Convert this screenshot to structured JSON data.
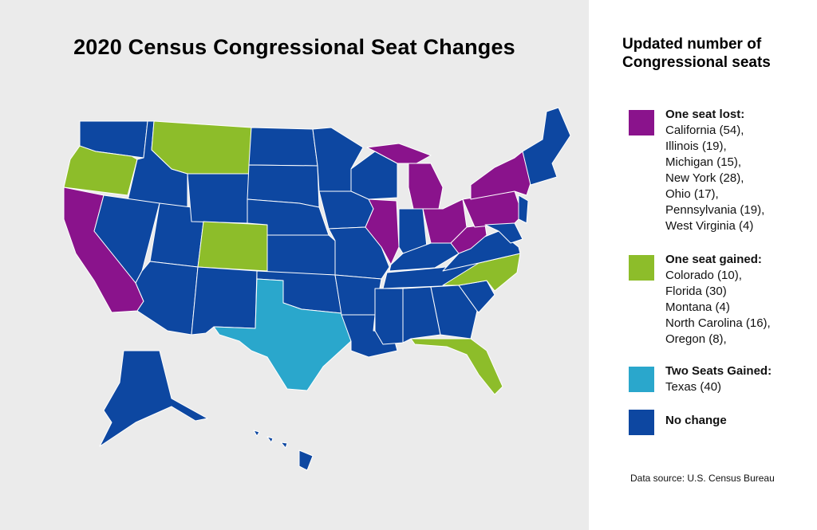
{
  "title": "2020 Census Congressional Seat Changes",
  "legend": {
    "title_line1": "Updated number of",
    "title_line2": "Congressional seats",
    "groups": [
      {
        "heading": "One seat lost:",
        "color": "#8a138c",
        "states": [
          "California (54),",
          "Illinois (19),",
          "Michigan (15),",
          "New York (28),",
          "Ohio (17),",
          "Pennsylvania (19),",
          "West Virginia (4)"
        ]
      },
      {
        "heading": "One seat gained:",
        "color": "#8dbd2a",
        "states": [
          "Colorado (10),",
          "Florida (30)",
          "Montana (4)",
          "North Carolina (16),",
          "Oregon (8),"
        ]
      },
      {
        "heading": "Two Seats Gained:",
        "color": "#2aa7cc",
        "states": [
          "Texas (40)"
        ]
      },
      {
        "heading": "No change",
        "color": "#0d47a1",
        "states": []
      }
    ]
  },
  "source": "Data source: U.S. Census Bureau",
  "colors": {
    "lost": "#8a138c",
    "gained_one": "#8dbd2a",
    "gained_two": "#2aa7cc",
    "no_change": "#0d47a1",
    "map_background": "#ebebeb"
  }
}
